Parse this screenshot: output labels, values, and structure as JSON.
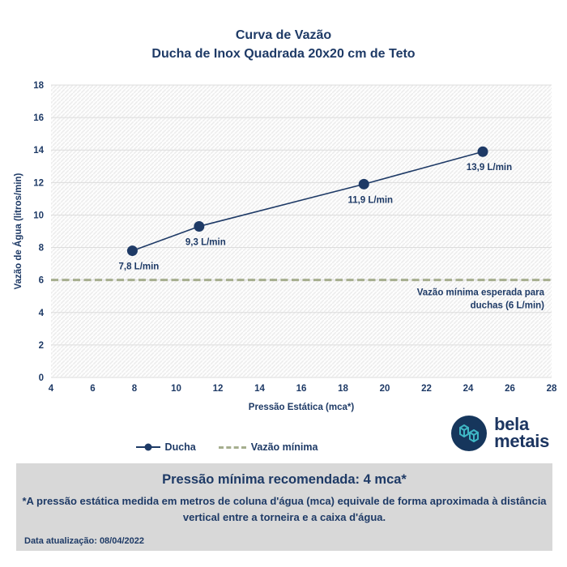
{
  "header": {
    "title": "Curva de Vazão",
    "subtitle": "Ducha de Inox Quadrada 20x20 cm de Teto"
  },
  "colors": {
    "navy": "#1e3a66",
    "dash_green": "#a6ae8e",
    "gridline": "#dcdcdc",
    "hatch_line": "#ececec",
    "hatch_bg": "#fdfdfd",
    "footer_bg": "#d8d8d8",
    "logo_teal": "#3fb6c4",
    "logo_circle": "#16365c"
  },
  "chart_data": {
    "type": "line",
    "title": "Curva de Vazão",
    "subtitle": "Ducha de Inox Quadrada 20x20 cm de Teto",
    "xlabel": "Pressão Estática (mca*)",
    "ylabel": "Vazão de Água (litros/min)",
    "xlim": [
      4,
      28
    ],
    "ylim": [
      0,
      18
    ],
    "xticks": [
      4,
      6,
      8,
      10,
      12,
      14,
      16,
      18,
      20,
      22,
      24,
      26,
      28
    ],
    "yticks": [
      0,
      2,
      4,
      6,
      8,
      10,
      12,
      14,
      16,
      18
    ],
    "grid": "horizontal",
    "legend_position": "bottom",
    "series": [
      {
        "name": "Ducha",
        "type": "line",
        "color": "#1e3a66",
        "marker": "circle",
        "points": [
          {
            "x": 7.9,
            "y": 7.8,
            "label": "7,8 L/min"
          },
          {
            "x": 11.1,
            "y": 9.3,
            "label": "9,3 L/min"
          },
          {
            "x": 19.0,
            "y": 11.9,
            "label": "11,9 L/min"
          },
          {
            "x": 24.7,
            "y": 13.9,
            "label": "13,9 L/min"
          }
        ]
      },
      {
        "name": "Vazão mínima",
        "type": "hline",
        "y": 6,
        "style": "dashed",
        "color": "#a6ae8e",
        "annotation_lines": [
          "Vazão mínima esperada para",
          "duchas (6 L/min)"
        ]
      }
    ]
  },
  "legend": {
    "items": [
      {
        "label": "Ducha"
      },
      {
        "label": "Vazão mínima"
      }
    ]
  },
  "logo": {
    "line1": "bela",
    "line2": "metais",
    "icon": "bela-metais-cube-monogram"
  },
  "footer_box": {
    "headline": "Pressão mínima recomendada: 4 mca*",
    "note": "*A pressão estática medida em metros de coluna d'água (mca) equivale de forma aproximada à distância vertical entre a torneira e a caixa d'água.",
    "updated_label": "Data atualização:",
    "updated_value": "08/04/2022"
  }
}
